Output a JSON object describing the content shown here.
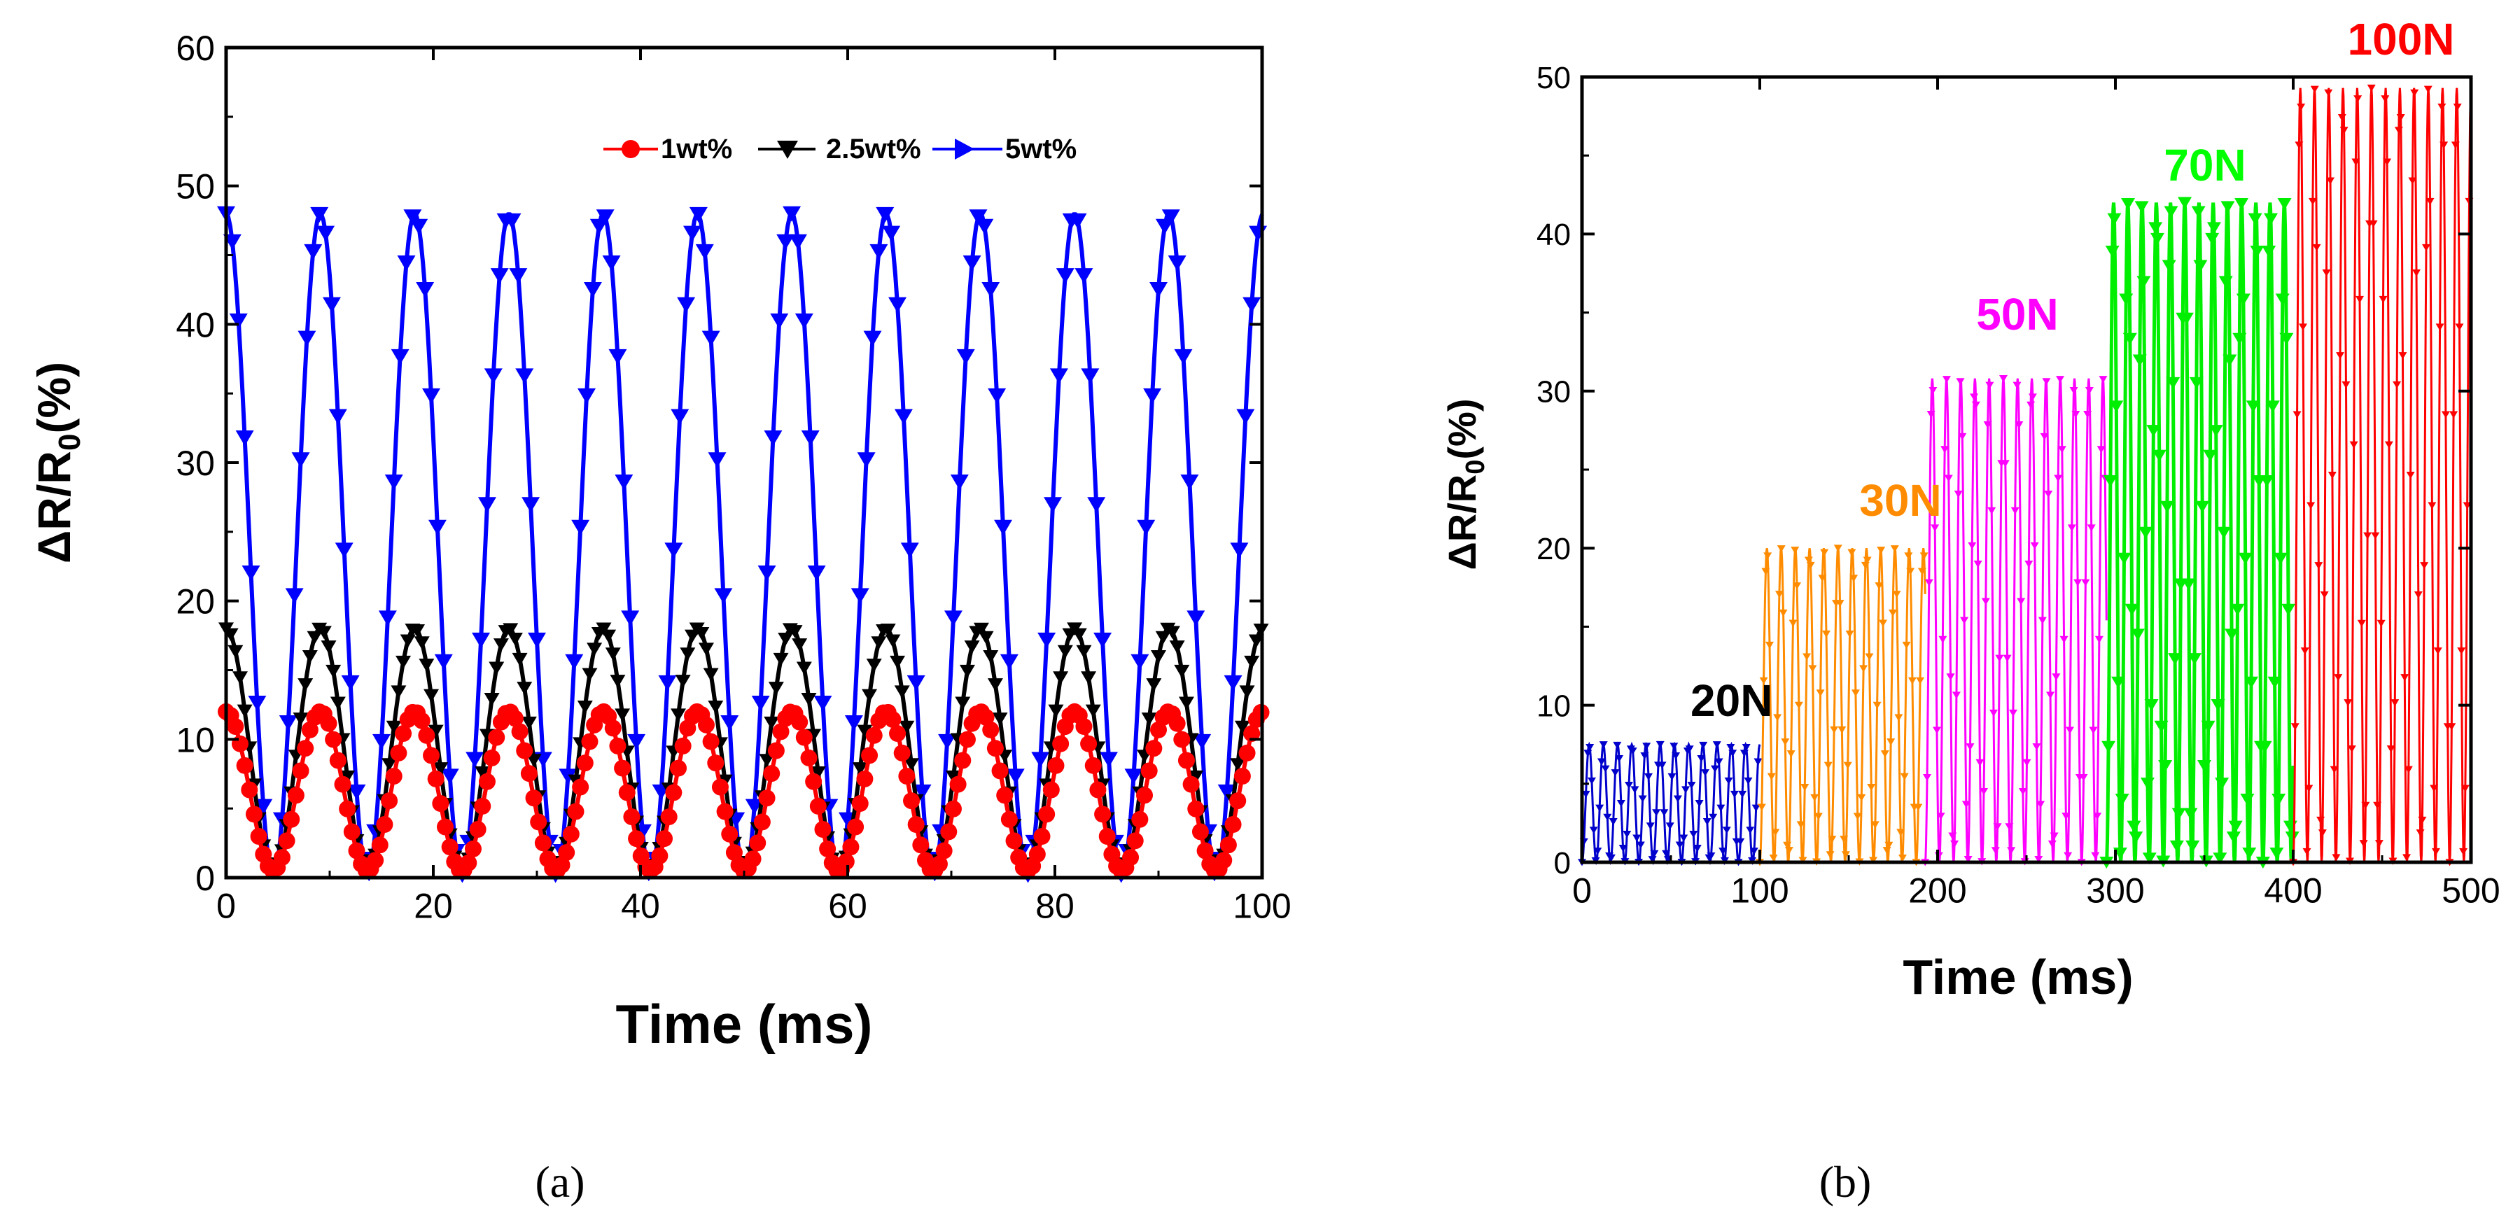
{
  "chart_data": [
    {
      "panel": "a",
      "type": "line",
      "caption": "(a)",
      "xlabel": "Time (ms)",
      "ylabel": "ΔR/R0(%)",
      "ylabel_parts": {
        "main": "ΔR/R",
        "sub": "0",
        "tail": "(%)"
      },
      "xlim": [
        0,
        100
      ],
      "ylim": [
        0,
        60
      ],
      "xticks": [
        0,
        20,
        40,
        60,
        80,
        100
      ],
      "yticks": [
        0,
        10,
        20,
        30,
        40,
        50,
        60
      ],
      "period_ms": 9.1,
      "cycles": 11,
      "series": [
        {
          "name": "1wt%",
          "color": "#ff0000",
          "marker": "circle",
          "min": 0.5,
          "max": 12
        },
        {
          "name": "2.5wt%",
          "color": "#000000",
          "marker": "triangle-down",
          "min": 0.5,
          "max": 18
        },
        {
          "name": "5wt%",
          "color": "#0000ff",
          "marker": "triangle-down",
          "min": 0.2,
          "max": 48
        }
      ]
    },
    {
      "panel": "b",
      "type": "line",
      "caption": "(b)",
      "xlabel": "Time (ms)",
      "ylabel": "ΔR/R0(%)",
      "ylabel_parts": {
        "main": "ΔR/R",
        "sub": "0",
        "tail": "(%)"
      },
      "xlim": [
        0,
        500
      ],
      "ylim": [
        0,
        50
      ],
      "xticks": [
        0,
        100,
        200,
        300,
        400,
        500
      ],
      "yticks": [
        0,
        10,
        20,
        30,
        40,
        50
      ],
      "segments": [
        {
          "label": "20N",
          "label_color": "#000000",
          "color": "#0000cc",
          "x_start": 0,
          "x_end": 100,
          "max": 7.5
        },
        {
          "label": "30N",
          "label_color": "#ff8c00",
          "color": "#ff8c00",
          "x_start": 100,
          "x_end": 193,
          "max": 20
        },
        {
          "label": "50N",
          "label_color": "#ff00ff",
          "color": "#ff00ff",
          "x_start": 193,
          "x_end": 295,
          "max": 30.8
        },
        {
          "label": "70N",
          "label_color": "#00ff00",
          "color": "#00ee00",
          "x_start": 295,
          "x_end": 400,
          "max": 42
        },
        {
          "label": "100N",
          "label_color": "#ff0000",
          "color": "#ff0000",
          "x_start": 400,
          "x_end": 500,
          "max": 49.3
        }
      ]
    }
  ]
}
